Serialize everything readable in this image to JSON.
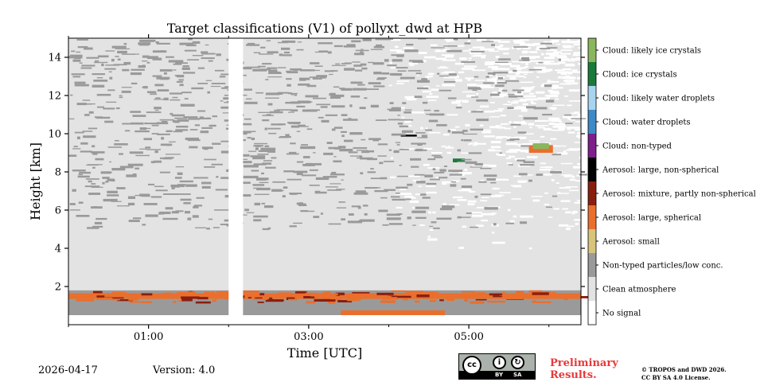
{
  "chart_data": {
    "type": "heatmap",
    "title": "Target classifications (V1) of pollyxt_dwd at HPB",
    "xlabel": "Time [UTC]",
    "ylabel": "Height [km]",
    "xlim_hours": [
      0.0,
      6.4
    ],
    "ylim_km": [
      0.0,
      15.0
    ],
    "x_ticks": [
      {
        "hour": 1,
        "label": "01:00"
      },
      {
        "hour": 3,
        "label": "03:00"
      },
      {
        "hour": 5,
        "label": "05:00"
      }
    ],
    "x_minor_hours": [
      0,
      2,
      4,
      6
    ],
    "y_ticks": [
      {
        "value": 2,
        "label": "2"
      },
      {
        "value": 4,
        "label": "4"
      },
      {
        "value": 6,
        "label": "6"
      },
      {
        "value": 8,
        "label": "8"
      },
      {
        "value": 10,
        "label": "10"
      },
      {
        "value": 12,
        "label": "12"
      },
      {
        "value": 14,
        "label": "14"
      }
    ],
    "classes": [
      {
        "label": "Cloud: likely ice crystals",
        "color": "#8ab65e"
      },
      {
        "label": "Cloud: ice crystals",
        "color": "#1a7a3a"
      },
      {
        "label": "Cloud: likely water droplets",
        "color": "#a9d4ef"
      },
      {
        "label": "Cloud: water droplets",
        "color": "#3d8ac8"
      },
      {
        "label": "Cloud: non-typed",
        "color": "#7e1f8c"
      },
      {
        "label": "Aerosol: large, non-spherical",
        "color": "#000000"
      },
      {
        "label": "Aerosol: mixture, partly non-spherical",
        "color": "#8a1e0e"
      },
      {
        "label": "Aerosol: large, spherical",
        "color": "#ea6f2d"
      },
      {
        "label": "Aerosol: small",
        "color": "#d8c47a"
      },
      {
        "label": "Non-typed particles/low conc.",
        "color": "#9a9a9a"
      },
      {
        "label": "Clean atmosphere",
        "color": "#e3e3e3"
      },
      {
        "label": "No signal",
        "color": "#ffffff"
      }
    ],
    "data_gap_hours": [
      2.0,
      2.18
    ],
    "regions": [
      {
        "class": "Clean atmosphere",
        "t": [
          0.0,
          6.4
        ],
        "h": [
          1.8,
          15.0
        ]
      },
      {
        "class": "No signal",
        "t": [
          4.0,
          6.4
        ],
        "h": [
          4.0,
          15.0
        ],
        "note": "patchy, mixed with clean atmosphere"
      },
      {
        "class": "Non-typed particles/low conc.",
        "t": [
          0.0,
          6.4
        ],
        "h": [
          5.0,
          15.0
        ],
        "note": "scattered streaks"
      },
      {
        "class": "Non-typed particles/low conc.",
        "t": [
          0.0,
          6.4
        ],
        "h": [
          0.5,
          1.8
        ]
      },
      {
        "class": "Aerosol: large, spherical",
        "t": [
          0.0,
          6.4
        ],
        "h": [
          1.35,
          1.65
        ]
      },
      {
        "class": "Aerosol: large, spherical",
        "t": [
          3.4,
          4.7
        ],
        "h": [
          0.5,
          0.75
        ]
      },
      {
        "class": "Aerosol: large, non-spherical",
        "t": [
          4.15,
          4.35
        ],
        "h": [
          9.85,
          9.95
        ]
      },
      {
        "class": "Cloud: ice crystals",
        "t": [
          4.8,
          4.95
        ],
        "h": [
          8.5,
          8.7
        ]
      },
      {
        "class": "Aerosol: large, spherical",
        "t": [
          5.75,
          6.05
        ],
        "h": [
          9.0,
          9.4
        ]
      },
      {
        "class": "Cloud: likely ice crystals",
        "t": [
          5.8,
          6.0
        ],
        "h": [
          9.2,
          9.5
        ]
      }
    ]
  },
  "footer": {
    "date": "2026-04-17",
    "version": "Version: 4.0",
    "license_badge": {
      "cc": "cc",
      "by": "BY",
      "sa": "SA"
    },
    "preliminary_line1": "Preliminary",
    "preliminary_line2": "Results.",
    "copyright_line1": "© TROPOS and DWD 2026.",
    "copyright_line2": "CC BY SA 4.0 License."
  }
}
